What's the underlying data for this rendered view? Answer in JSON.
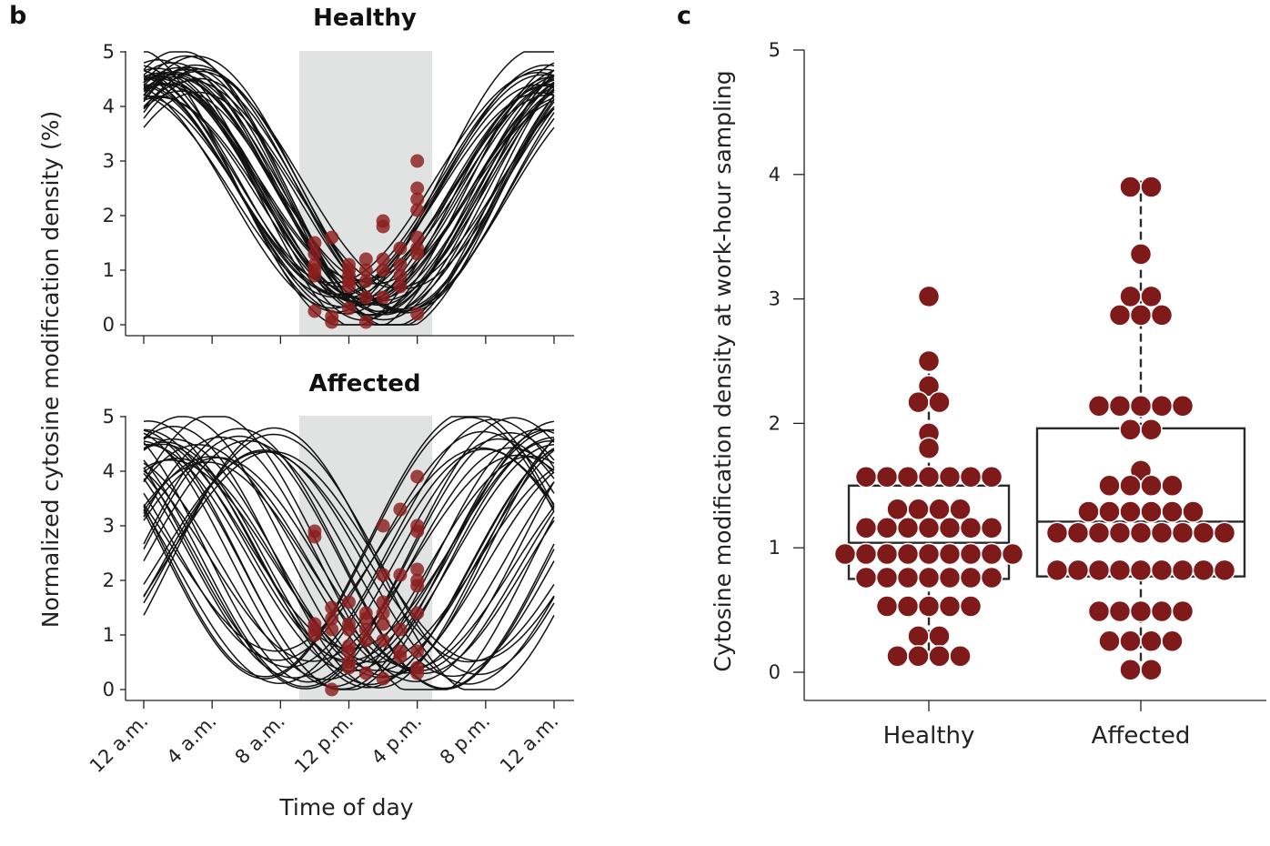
{
  "panel_b": {
    "letter": "b",
    "ylabel": "Normalized cytosine modification density (%)",
    "xlabel": "Time of day",
    "x_ticks": [
      "12 a.m.",
      "4 a.m.",
      "8 a.m.",
      "12 p.m.",
      "4 p.m.",
      "8 p.m.",
      "12 a.m."
    ],
    "y_ticks": [
      "0",
      "1",
      "2",
      "3",
      "4",
      "5"
    ]
  },
  "panel_c": {
    "letter": "c",
    "ylabel": "Cytosine modification density at work-hour sampling",
    "y_ticks": [
      "0",
      "1",
      "2",
      "3",
      "4",
      "5"
    ]
  },
  "colors": {
    "dot": "#7e1a1a",
    "curve": "#111111",
    "shade": "#e1e2e2"
  },
  "chart_data": [
    {
      "type": "line",
      "title": "Healthy",
      "xlabel": "Time of day",
      "ylabel": "Normalized cytosine modification density (%)",
      "xlim": [
        0,
        24
      ],
      "ylim": [
        0,
        5
      ],
      "shaded_x_range": [
        9.25,
        17
      ],
      "curve_count": 40,
      "curve_model": "sinusoid, 24 h period, trough near 12-2 p.m.",
      "sample_points": [
        [
          10,
          1.5
        ],
        [
          10,
          1.3
        ],
        [
          10,
          1.1
        ],
        [
          10,
          1.0
        ],
        [
          10,
          0.9
        ],
        [
          10,
          0.25
        ],
        [
          11,
          1.6
        ],
        [
          11,
          0.15
        ],
        [
          11,
          0.05
        ],
        [
          12,
          1.0
        ],
        [
          12,
          0.9
        ],
        [
          12,
          0.8
        ],
        [
          12,
          0.7
        ],
        [
          12,
          1.1
        ],
        [
          12,
          0.3
        ],
        [
          13,
          1.2
        ],
        [
          13,
          1.0
        ],
        [
          13,
          0.8
        ],
        [
          13,
          0.5
        ],
        [
          13,
          0.05
        ],
        [
          14,
          1.9
        ],
        [
          14,
          1.8
        ],
        [
          14,
          1.2
        ],
        [
          14,
          1.0
        ],
        [
          14,
          0.5
        ],
        [
          15,
          1.4
        ],
        [
          15,
          1.1
        ],
        [
          15,
          0.9
        ],
        [
          15,
          0.7
        ],
        [
          16,
          3.0
        ],
        [
          16,
          2.5
        ],
        [
          16,
          2.3
        ],
        [
          16,
          2.1
        ],
        [
          16,
          1.6
        ],
        [
          16,
          1.4
        ],
        [
          16,
          1.3
        ],
        [
          16,
          0.2
        ]
      ]
    },
    {
      "type": "line",
      "title": "Affected",
      "xlabel": "Time of day",
      "ylabel": "Normalized cytosine modification density (%)",
      "xlim": [
        0,
        24
      ],
      "ylim": [
        0,
        5
      ],
      "shaded_x_range": [
        9.25,
        17
      ],
      "curve_count": 40,
      "curve_model": "sinusoid, 24 h period, phase widely dispersed",
      "sample_points": [
        [
          10,
          2.9
        ],
        [
          10,
          2.8
        ],
        [
          10,
          1.2
        ],
        [
          10,
          1.1
        ],
        [
          10,
          1.0
        ],
        [
          11,
          1.5
        ],
        [
          11,
          1.3
        ],
        [
          11,
          1.1
        ],
        [
          11,
          0.0
        ],
        [
          12,
          1.6
        ],
        [
          12,
          1.2
        ],
        [
          12,
          1.1
        ],
        [
          12,
          0.8
        ],
        [
          12,
          0.7
        ],
        [
          12,
          0.5
        ],
        [
          12,
          0.4
        ],
        [
          13,
          1.4
        ],
        [
          13,
          1.3
        ],
        [
          13,
          1.1
        ],
        [
          13,
          0.9
        ],
        [
          13,
          0.3
        ],
        [
          14,
          3.0
        ],
        [
          14,
          2.1
        ],
        [
          14,
          1.6
        ],
        [
          14,
          1.4
        ],
        [
          14,
          1.2
        ],
        [
          14,
          0.9
        ],
        [
          14,
          0.2
        ],
        [
          15,
          3.3
        ],
        [
          15,
          2.1
        ],
        [
          15,
          1.1
        ],
        [
          15,
          0.7
        ],
        [
          15,
          0.6
        ],
        [
          16,
          3.9
        ],
        [
          16,
          3.0
        ],
        [
          16,
          2.9
        ],
        [
          16,
          2.2
        ],
        [
          16,
          2.0
        ],
        [
          16,
          1.9
        ],
        [
          16,
          1.4
        ],
        [
          16,
          0.7
        ],
        [
          16,
          0.4
        ],
        [
          16,
          0.3
        ]
      ]
    },
    {
      "type": "box",
      "ylabel": "Cytosine modification density at work-hour sampling",
      "ylim": [
        0,
        5
      ],
      "categories": [
        "Healthy",
        "Affected"
      ],
      "series": [
        {
          "category": "Healthy",
          "box": {
            "whisker_low": 0.13,
            "q1": 0.75,
            "median": 1.04,
            "q3": 1.5,
            "whisker_high": 2.4
          },
          "levels": [
            [
              3.02,
              1
            ],
            [
              2.5,
              1
            ],
            [
              2.3,
              1
            ],
            [
              2.17,
              2
            ],
            [
              1.92,
              1
            ],
            [
              1.8,
              1
            ],
            [
              1.57,
              7
            ],
            [
              1.31,
              4
            ],
            [
              1.16,
              7
            ],
            [
              0.95,
              9
            ],
            [
              0.76,
              7
            ],
            [
              0.53,
              5
            ],
            [
              0.29,
              2
            ],
            [
              0.13,
              4
            ]
          ]
        },
        {
          "category": "Affected",
          "box": {
            "whisker_low": 0.02,
            "q1": 0.77,
            "median": 1.21,
            "q3": 1.96,
            "whisker_high": 3.95
          },
          "levels": [
            [
              3.9,
              2
            ],
            [
              3.36,
              1
            ],
            [
              3.02,
              2
            ],
            [
              2.87,
              3
            ],
            [
              2.14,
              5
            ],
            [
              1.95,
              2
            ],
            [
              1.62,
              1
            ],
            [
              1.5,
              4
            ],
            [
              1.29,
              6
            ],
            [
              1.12,
              9
            ],
            [
              0.82,
              9
            ],
            [
              0.49,
              5
            ],
            [
              0.25,
              4
            ],
            [
              0.02,
              2
            ]
          ]
        }
      ]
    }
  ]
}
